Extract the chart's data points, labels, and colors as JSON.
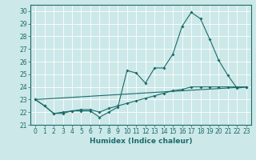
{
  "xlabel": "Humidex (Indice chaleur)",
  "bg_color": "#cce8e8",
  "line_color": "#1a6b6b",
  "grid_color": "#ffffff",
  "xlim": [
    -0.5,
    23.5
  ],
  "ylim": [
    21.0,
    30.5
  ],
  "yticks": [
    21,
    22,
    23,
    24,
    25,
    26,
    27,
    28,
    29,
    30
  ],
  "xticks": [
    0,
    1,
    2,
    3,
    4,
    5,
    6,
    7,
    8,
    9,
    10,
    11,
    12,
    13,
    14,
    15,
    16,
    17,
    18,
    19,
    20,
    21,
    22,
    23
  ],
  "series_main": [
    [
      0,
      23.0
    ],
    [
      1,
      22.5
    ],
    [
      2,
      21.9
    ],
    [
      3,
      21.9
    ],
    [
      4,
      22.1
    ],
    [
      5,
      22.1
    ],
    [
      6,
      22.1
    ],
    [
      7,
      21.6
    ],
    [
      8,
      22.0
    ],
    [
      9,
      22.4
    ],
    [
      10,
      25.3
    ],
    [
      11,
      25.1
    ],
    [
      12,
      24.3
    ],
    [
      13,
      25.5
    ],
    [
      14,
      25.5
    ],
    [
      15,
      26.6
    ],
    [
      16,
      28.8
    ],
    [
      17,
      29.9
    ],
    [
      18,
      29.4
    ],
    [
      19,
      27.8
    ],
    [
      20,
      26.1
    ],
    [
      21,
      24.9
    ],
    [
      22,
      23.9
    ],
    [
      23,
      24.0
    ]
  ],
  "series_diagonal": [
    [
      0,
      23.0
    ],
    [
      23,
      24.0
    ]
  ],
  "series_smooth": [
    [
      0,
      23.0
    ],
    [
      1,
      22.5
    ],
    [
      2,
      21.9
    ],
    [
      3,
      22.0
    ],
    [
      4,
      22.1
    ],
    [
      5,
      22.2
    ],
    [
      6,
      22.2
    ],
    [
      7,
      22.0
    ],
    [
      8,
      22.3
    ],
    [
      9,
      22.5
    ],
    [
      10,
      22.7
    ],
    [
      11,
      22.9
    ],
    [
      12,
      23.1
    ],
    [
      13,
      23.3
    ],
    [
      14,
      23.5
    ],
    [
      15,
      23.7
    ],
    [
      16,
      23.8
    ],
    [
      17,
      24.0
    ],
    [
      18,
      24.0
    ],
    [
      19,
      24.0
    ],
    [
      20,
      24.0
    ],
    [
      21,
      24.0
    ],
    [
      22,
      24.0
    ],
    [
      23,
      24.0
    ]
  ],
  "tick_fontsize": 5.5,
  "xlabel_fontsize": 6.5
}
